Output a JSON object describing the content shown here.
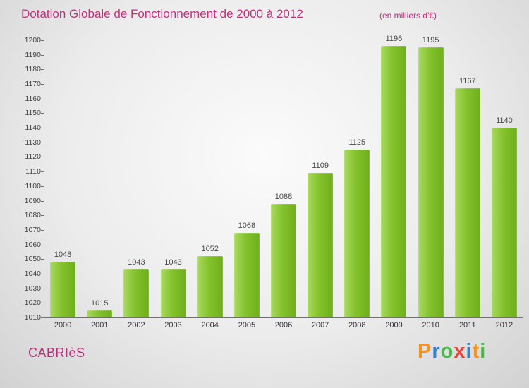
{
  "title": "Dotation Globale de Fonctionnement de 2000 à 2012",
  "subtitle": "(en milliers d'€)",
  "footer": {
    "name": "CABRIèS"
  },
  "colors": {
    "title": "#c2317e",
    "footer_name": "#b5337c",
    "bar_main": "#84c22c",
    "axis": "#707070",
    "value_label": "#4a4a4a"
  },
  "logo": {
    "name": "Proxiti",
    "letters": [
      {
        "char": "P",
        "color": "#f7941d"
      },
      {
        "char": "r",
        "color": "#3a7dc9"
      },
      {
        "char": "o",
        "color": "#4bb749"
      },
      {
        "char": "x",
        "color": "#e8443a"
      },
      {
        "char": "i",
        "color": "#3a7dc9"
      },
      {
        "char": "t",
        "color": "#f7941d"
      },
      {
        "char": "i",
        "color": "#4bb749"
      }
    ]
  },
  "chart_data": {
    "type": "bar",
    "title": "Dotation Globale de Fonctionnement de 2000 à 2012",
    "subtitle": "(en milliers d'€)",
    "categories": [
      "2000",
      "2001",
      "2002",
      "2003",
      "2004",
      "2005",
      "2006",
      "2007",
      "2008",
      "2009",
      "2010",
      "2011",
      "2012"
    ],
    "values": [
      1048,
      1015,
      1043,
      1043,
      1052,
      1068,
      1088,
      1109,
      1125,
      1196,
      1195,
      1167,
      1140
    ],
    "xlabel": "",
    "ylabel": "",
    "ylim": [
      1010,
      1200
    ],
    "ytick_step": 10,
    "grid": false,
    "legend": false,
    "bar_color": "#84c22c"
  }
}
